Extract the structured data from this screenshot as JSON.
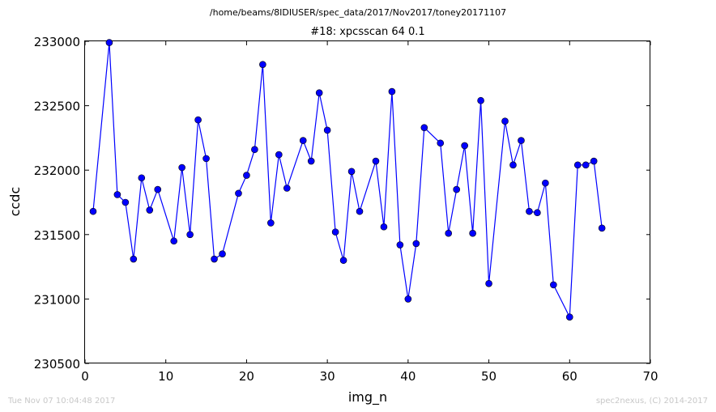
{
  "figure": {
    "suptitle": "/home/beams/8IDIUSER/spec_data/2017/Nov2017/toney20171107",
    "footer_left": "Tue Nov 07 10:04:48 2017",
    "footer_right": "spec2nexus, (C) 2014-2017"
  },
  "chart_data": {
    "type": "line",
    "title": "#18: xpcsscan 64 0.1",
    "xlabel": "img_n",
    "ylabel": "ccdc",
    "xlim": [
      0,
      70
    ],
    "ylim": [
      230500,
      233000
    ],
    "xticks": [
      0,
      10,
      20,
      30,
      40,
      50,
      60,
      70
    ],
    "yticks": [
      230500,
      231000,
      231500,
      232000,
      232500,
      233000
    ],
    "grid": false,
    "line_color": "#0000ff",
    "marker_color": "#0000ff",
    "series": [
      {
        "x": [
          1,
          3,
          4,
          5,
          6,
          7,
          8,
          9,
          11,
          12,
          13,
          14,
          15,
          16,
          17,
          19,
          20,
          21,
          22,
          23,
          24,
          25,
          27,
          28,
          29,
          30,
          31,
          32,
          33,
          34,
          36,
          37,
          38,
          39,
          40,
          41,
          42,
          44,
          45,
          46,
          47,
          48,
          49,
          50,
          52,
          53,
          54,
          55,
          56,
          57,
          58,
          60,
          61,
          62,
          63,
          64
        ],
        "y": [
          231680,
          232990,
          231810,
          231750,
          231310,
          231940,
          231690,
          231850,
          231450,
          232020,
          231500,
          232390,
          232090,
          231310,
          231350,
          231820,
          231960,
          232160,
          232820,
          231590,
          232120,
          231860,
          232230,
          232070,
          232600,
          232310,
          231520,
          231300,
          231990,
          231680,
          232070,
          231560,
          232610,
          231420,
          231000,
          231430,
          232330,
          232210,
          231510,
          231850,
          232190,
          231510,
          232540,
          231120,
          232380,
          232040,
          232230,
          231680,
          231670,
          231900,
          231110,
          230860,
          232040,
          232040,
          232070,
          231550
        ]
      }
    ]
  }
}
